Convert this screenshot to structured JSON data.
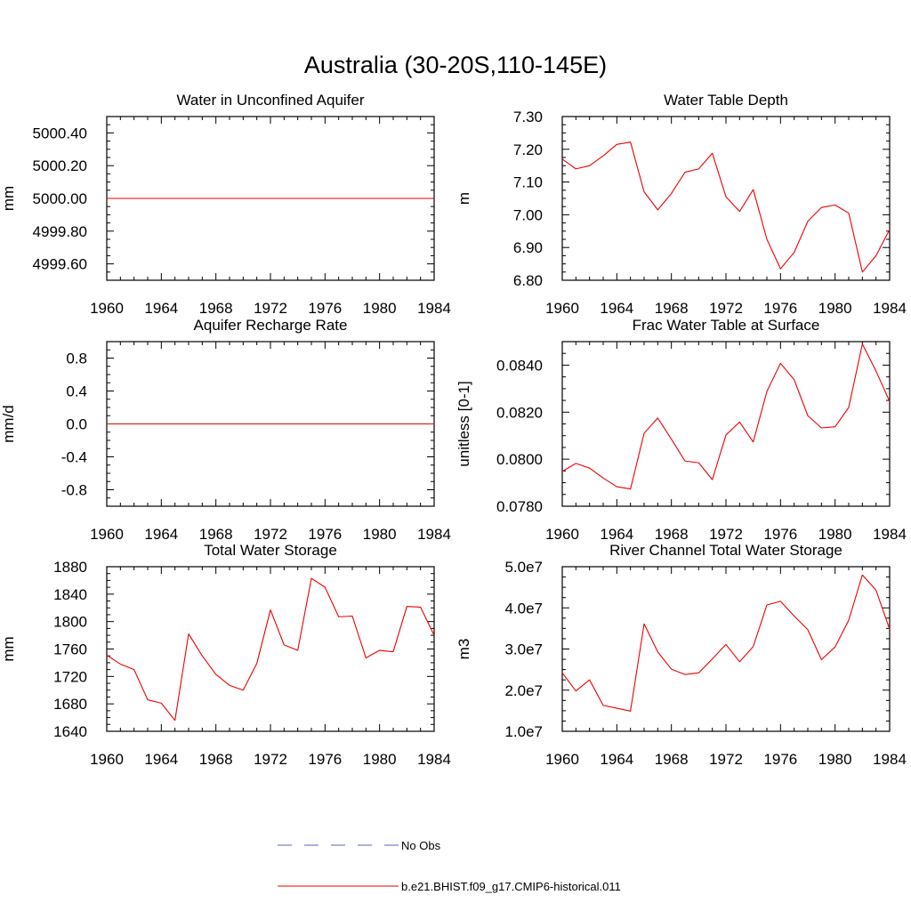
{
  "page_title": "Australia (30-20S,110-145E)",
  "line_color": "#ee0000",
  "obs_color": "#5566bb",
  "legend": {
    "obs_label": "No Obs",
    "model_label": "b.e21.BHIST.f09_g17.CMIP6-historical.011"
  },
  "chart_data": [
    {
      "type": "line",
      "title": "Water in Unconfined Aquifer",
      "xlabel": "",
      "ylabel": "mm",
      "xlim": [
        1960,
        1984
      ],
      "ylim": [
        4999.5,
        5000.5
      ],
      "x_ticks": [
        1960,
        1964,
        1968,
        1972,
        1976,
        1980,
        1984
      ],
      "y_ticks": [
        4999.6,
        4999.8,
        5000.0,
        5000.2,
        5000.4
      ],
      "y_tick_labels": [
        "4999.60",
        "4999.80",
        "5000.00",
        "5000.20",
        "5000.40"
      ],
      "series": [
        {
          "x": [
            1960,
            1961,
            1962,
            1963,
            1964,
            1965,
            1966,
            1967,
            1968,
            1969,
            1970,
            1971,
            1972,
            1973,
            1974,
            1975,
            1976,
            1977,
            1978,
            1979,
            1980,
            1981,
            1982,
            1983,
            1984
          ],
          "values": [
            5000,
            5000,
            5000,
            5000,
            5000,
            5000,
            5000,
            5000,
            5000,
            5000,
            5000,
            5000,
            5000,
            5000,
            5000,
            5000,
            5000,
            5000,
            5000,
            5000,
            5000,
            5000,
            5000,
            5000,
            5000
          ]
        }
      ]
    },
    {
      "type": "line",
      "title": "Water Table Depth",
      "xlabel": "",
      "ylabel": "m",
      "xlim": [
        1960,
        1984
      ],
      "ylim": [
        6.8,
        7.3
      ],
      "x_ticks": [
        1960,
        1964,
        1968,
        1972,
        1976,
        1980,
        1984
      ],
      "y_ticks": [
        6.8,
        6.9,
        7.0,
        7.1,
        7.2,
        7.3
      ],
      "y_tick_labels": [
        "6.80",
        "6.90",
        "7.00",
        "7.10",
        "7.20",
        "7.30"
      ],
      "series": [
        {
          "x": [
            1960,
            1961,
            1962,
            1963,
            1964,
            1965,
            1966,
            1967,
            1968,
            1969,
            1970,
            1971,
            1972,
            1973,
            1974,
            1975,
            1976,
            1977,
            1978,
            1979,
            1980,
            1981,
            1982,
            1983,
            1984
          ],
          "values": [
            7.17,
            7.14,
            7.15,
            7.18,
            7.215,
            7.222,
            7.07,
            7.015,
            7.065,
            7.13,
            7.14,
            7.188,
            7.055,
            7.01,
            7.077,
            6.925,
            6.835,
            6.885,
            6.98,
            7.022,
            7.03,
            7.005,
            6.825,
            6.875,
            6.955
          ]
        }
      ]
    },
    {
      "type": "line",
      "title": "Aquifer Recharge Rate",
      "xlabel": "",
      "ylabel": "mm/d",
      "xlim": [
        1960,
        1984
      ],
      "ylim": [
        -1.0,
        1.0
      ],
      "x_ticks": [
        1960,
        1964,
        1968,
        1972,
        1976,
        1980,
        1984
      ],
      "y_ticks": [
        -0.8,
        -0.4,
        0.0,
        0.4,
        0.8
      ],
      "y_tick_labels": [
        "-0.8",
        "-0.4",
        "0.0",
        "0.4",
        "0.8"
      ],
      "series": [
        {
          "x": [
            1960,
            1961,
            1962,
            1963,
            1964,
            1965,
            1966,
            1967,
            1968,
            1969,
            1970,
            1971,
            1972,
            1973,
            1974,
            1975,
            1976,
            1977,
            1978,
            1979,
            1980,
            1981,
            1982,
            1983,
            1984
          ],
          "values": [
            0,
            0,
            0,
            0,
            0,
            0,
            0,
            0,
            0,
            0,
            0,
            0,
            0,
            0,
            0,
            0,
            0,
            0,
            0,
            0,
            0,
            0,
            0,
            0,
            0
          ]
        }
      ]
    },
    {
      "type": "line",
      "title": "Frac Water Table at Surface",
      "xlabel": "",
      "ylabel": "unitless [0-1]",
      "xlim": [
        1960,
        1984
      ],
      "ylim": [
        0.078,
        0.085
      ],
      "x_ticks": [
        1960,
        1964,
        1968,
        1972,
        1976,
        1980,
        1984
      ],
      "y_ticks": [
        0.078,
        0.08,
        0.082,
        0.084
      ],
      "y_tick_labels": [
        "0.0780",
        "0.0800",
        "0.0820",
        "0.0840"
      ],
      "series": [
        {
          "x": [
            1960,
            1961,
            1962,
            1963,
            1964,
            1965,
            1966,
            1967,
            1968,
            1969,
            1970,
            1971,
            1972,
            1973,
            1974,
            1975,
            1976,
            1977,
            1978,
            1979,
            1980,
            1981,
            1982,
            1983,
            1984
          ],
          "values": [
            0.07948,
            0.07982,
            0.07962,
            0.0792,
            0.07883,
            0.07873,
            0.0811,
            0.08175,
            0.08085,
            0.07992,
            0.07985,
            0.07913,
            0.08103,
            0.08158,
            0.08073,
            0.08288,
            0.08408,
            0.08338,
            0.08185,
            0.08133,
            0.08138,
            0.0822,
            0.0849,
            0.08375,
            0.08245
          ]
        }
      ]
    },
    {
      "type": "line",
      "title": "Total Water Storage",
      "xlabel": "",
      "ylabel": "mm",
      "xlim": [
        1960,
        1984
      ],
      "ylim": [
        1640,
        1880
      ],
      "x_ticks": [
        1960,
        1964,
        1968,
        1972,
        1976,
        1980,
        1984
      ],
      "y_ticks": [
        1640,
        1680,
        1720,
        1760,
        1800,
        1840,
        1880
      ],
      "y_tick_labels": [
        "1640",
        "1680",
        "1720",
        "1760",
        "1800",
        "1840",
        "1880"
      ],
      "series": [
        {
          "x": [
            1960,
            1961,
            1962,
            1963,
            1964,
            1965,
            1966,
            1967,
            1968,
            1969,
            1970,
            1971,
            1972,
            1973,
            1974,
            1975,
            1976,
            1977,
            1978,
            1979,
            1980,
            1981,
            1982,
            1983,
            1984
          ],
          "values": [
            1751,
            1738,
            1730,
            1686,
            1681,
            1656,
            1782,
            1750,
            1723,
            1707,
            1700,
            1739,
            1817,
            1766,
            1758,
            1863,
            1850,
            1807,
            1808,
            1747,
            1758,
            1756,
            1822,
            1821,
            1780
          ]
        }
      ]
    },
    {
      "type": "line",
      "title": "River Channel Total Water Storage",
      "xlabel": "",
      "ylabel": "m3",
      "xlim": [
        1960,
        1984
      ],
      "ylim": [
        10000000,
        50000000
      ],
      "x_ticks": [
        1960,
        1964,
        1968,
        1972,
        1976,
        1980,
        1984
      ],
      "y_ticks": [
        10000000,
        20000000,
        30000000,
        40000000,
        50000000
      ],
      "y_tick_labels": [
        "1.0e7",
        "2.0e7",
        "3.0e7",
        "4.0e7",
        "5.0e7"
      ],
      "series": [
        {
          "x": [
            1960,
            1961,
            1962,
            1963,
            1964,
            1965,
            1966,
            1967,
            1968,
            1969,
            1970,
            1971,
            1972,
            1973,
            1974,
            1975,
            1976,
            1977,
            1978,
            1979,
            1980,
            1981,
            1982,
            1983,
            1984
          ],
          "values": [
            24200000,
            19800000,
            22500000,
            16300000,
            15600000,
            14900000,
            36100000,
            29300000,
            25100000,
            23800000,
            24200000,
            27600000,
            31100000,
            26900000,
            30600000,
            40700000,
            41600000,
            38000000,
            34700000,
            27400000,
            30500000,
            37000000,
            48000000,
            44300000,
            34800000
          ]
        }
      ]
    }
  ]
}
